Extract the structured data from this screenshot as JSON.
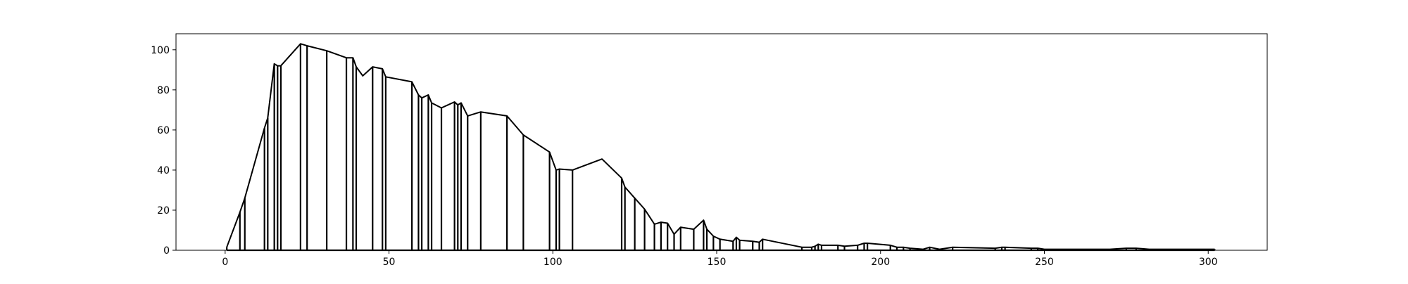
{
  "chart_data": {
    "type": "line",
    "title": "",
    "xlabel": "",
    "ylabel": "",
    "xlim": [
      -15,
      318
    ],
    "ylim": [
      0,
      108
    ],
    "x_ticks": [
      0,
      50,
      100,
      150,
      200,
      250,
      300
    ],
    "y_ticks": [
      0,
      20,
      40,
      60,
      80,
      100
    ],
    "grid": false,
    "legend": "none",
    "colors": {
      "line": "#000000",
      "axes": "#000000",
      "background": "#ffffff"
    },
    "series": [
      {
        "x": [
          0.5,
          4.5,
          6,
          12,
          13,
          15,
          16,
          17,
          23,
          25,
          31,
          37,
          39,
          40,
          42,
          45,
          48,
          49,
          57,
          59,
          60,
          62,
          63,
          66,
          70,
          71,
          72,
          74,
          78,
          86,
          91,
          99,
          101,
          102,
          106,
          115,
          121,
          122,
          125,
          128,
          131,
          133,
          135,
          137,
          139,
          143,
          146,
          147,
          149,
          151,
          155,
          156,
          157,
          161,
          163,
          164,
          176,
          179,
          180,
          181,
          182,
          187,
          189,
          193,
          195,
          196,
          203,
          205,
          207,
          209,
          213,
          215,
          218,
          222,
          235,
          237,
          238,
          246,
          248,
          250,
          255,
          260,
          265,
          270,
          275,
          278,
          282,
          288,
          295,
          302
        ],
        "y": [
          1.5,
          19,
          26,
          61,
          66,
          93,
          92,
          92,
          103,
          102,
          99.5,
          96,
          96,
          91.5,
          87,
          91.5,
          90.5,
          86.5,
          84,
          77.5,
          76,
          77.5,
          73.5,
          71,
          74,
          72.5,
          73.5,
          67,
          69,
          67,
          57.5,
          49,
          40,
          40.5,
          40,
          45.5,
          36,
          31.5,
          26,
          20.5,
          13,
          14,
          13.5,
          8,
          11.5,
          10.5,
          15,
          10.5,
          7,
          5.5,
          4.5,
          6.5,
          5,
          4.5,
          4,
          5.5,
          1.5,
          1.5,
          2,
          3,
          2.5,
          2.5,
          2,
          2.5,
          3.5,
          3.5,
          2.5,
          1.5,
          1.5,
          1,
          0.5,
          1.5,
          0.5,
          1.5,
          1,
          1.5,
          1.5,
          1,
          1,
          0.5,
          0.5,
          0.5,
          0.5,
          0.5,
          1,
          1,
          0.5,
          0.5,
          0.5,
          0.5
        ],
        "stems": [
          0.5,
          4.5,
          6,
          12,
          13,
          15,
          16,
          17,
          23,
          25,
          31,
          37,
          39,
          40,
          45,
          48,
          49,
          57,
          59,
          60,
          62,
          63,
          66,
          70,
          71,
          72,
          74,
          78,
          86,
          91,
          99,
          101,
          102,
          106,
          121,
          122,
          125,
          128,
          131,
          133,
          135,
          137,
          139,
          143,
          146,
          147,
          149,
          151,
          155,
          156,
          157,
          161,
          163,
          164,
          176,
          179,
          180,
          181,
          182,
          187,
          189,
          193,
          195,
          196,
          203,
          205,
          207,
          209,
          213,
          215,
          218,
          222,
          235,
          237,
          238,
          246,
          248,
          250,
          255,
          260,
          265,
          270,
          275,
          278,
          282,
          288,
          295,
          302
        ]
      }
    ]
  }
}
